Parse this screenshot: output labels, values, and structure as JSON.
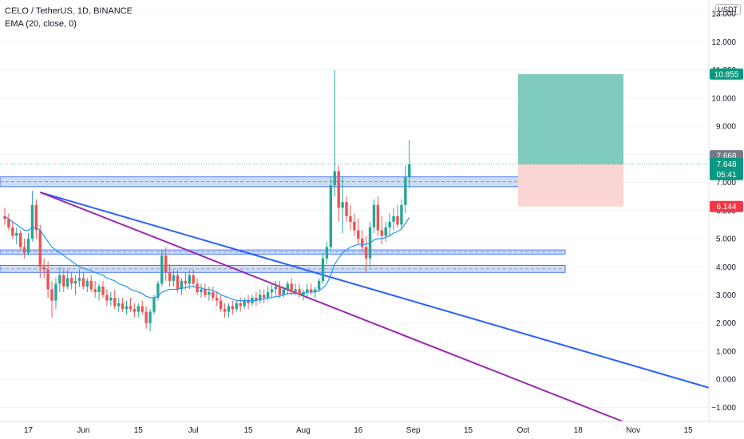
{
  "header": {
    "title": "CELO / TetherUS, 1D, BINANCE",
    "indicator": "EMA (20, close, 0)"
  },
  "currency_button": "USDT",
  "colors": {
    "up": "#26a69a",
    "down": "#ef5350",
    "ema": "#2196f3",
    "trend_blue": "#2962ff",
    "trend_purple": "#9c27b0",
    "zone_fill": "#c6d8f3",
    "zone_border": "#2962ff",
    "profit": "#7fcbbd",
    "loss": "#fbd4d4"
  },
  "price_tags": {
    "target": "10.855",
    "last_gray": "7.668",
    "last_green": "7.648",
    "countdown": "05:41",
    "stop": "6.144"
  },
  "chart_data": {
    "type": "candlestick",
    "ylim": [
      -1.5,
      14.0
    ],
    "y_ticks": [
      "13.000",
      "12.000",
      "11.000",
      "10.000",
      "9.000",
      "8.000",
      "7.000",
      "6.000",
      "5.000",
      "4.000",
      "3.000",
      "2.000",
      "1.000",
      "0.000",
      "−1.000"
    ],
    "y_tick_values": [
      13,
      12,
      11,
      10,
      9,
      8,
      7,
      6,
      5,
      4,
      3,
      2,
      1,
      0,
      -1
    ],
    "x_ticks": [
      "17",
      "Jun",
      "15",
      "Jul",
      "15",
      "Aug",
      "16",
      "Sep",
      "15",
      "Oct",
      "18",
      "Nov",
      "15"
    ],
    "x_tick_index": [
      6,
      20,
      34,
      48,
      62,
      76,
      90,
      104,
      118,
      132,
      146,
      160,
      174
    ],
    "x_start_index": 0,
    "ohlc": [
      [
        5.8,
        6.1,
        5.5,
        5.7
      ],
      [
        5.7,
        5.9,
        5.3,
        5.4
      ],
      [
        5.4,
        5.6,
        5.0,
        5.1
      ],
      [
        5.1,
        5.4,
        4.8,
        5.2
      ],
      [
        5.2,
        5.3,
        4.6,
        4.7
      ],
      [
        4.7,
        5.0,
        4.3,
        4.5
      ],
      [
        4.5,
        5.2,
        4.4,
        5.0
      ],
      [
        5.0,
        6.7,
        4.9,
        6.2
      ],
      [
        6.2,
        6.4,
        5.0,
        5.3
      ],
      [
        5.3,
        5.5,
        3.6,
        4.0
      ],
      [
        4.0,
        4.3,
        3.6,
        3.9
      ],
      [
        3.9,
        4.2,
        2.9,
        3.2
      ],
      [
        3.2,
        3.5,
        2.2,
        2.8
      ],
      [
        2.8,
        3.6,
        2.5,
        3.4
      ],
      [
        3.4,
        4.0,
        3.1,
        3.7
      ],
      [
        3.7,
        3.9,
        3.1,
        3.3
      ],
      [
        3.3,
        3.9,
        3.2,
        3.6
      ],
      [
        3.6,
        3.8,
        3.2,
        3.4
      ],
      [
        3.4,
        3.7,
        3.0,
        3.5
      ],
      [
        3.5,
        3.9,
        3.3,
        3.6
      ],
      [
        3.6,
        3.8,
        3.2,
        3.3
      ],
      [
        3.3,
        3.6,
        3.1,
        3.5
      ],
      [
        3.5,
        3.7,
        3.1,
        3.2
      ],
      [
        3.2,
        3.5,
        2.9,
        3.1
      ],
      [
        3.1,
        3.4,
        2.8,
        3.3
      ],
      [
        3.3,
        3.5,
        2.9,
        3.0
      ],
      [
        3.0,
        3.2,
        2.6,
        2.8
      ],
      [
        2.8,
        3.1,
        2.6,
        2.9
      ],
      [
        2.9,
        3.2,
        2.5,
        2.6
      ],
      [
        2.6,
        2.9,
        2.4,
        2.7
      ],
      [
        2.7,
        2.9,
        2.4,
        2.5
      ],
      [
        2.5,
        2.8,
        2.3,
        2.6
      ],
      [
        2.6,
        2.9,
        2.4,
        2.5
      ],
      [
        2.5,
        2.7,
        2.2,
        2.4
      ],
      [
        2.4,
        2.7,
        2.2,
        2.6
      ],
      [
        2.6,
        2.8,
        2.3,
        2.4
      ],
      [
        2.4,
        2.6,
        1.8,
        2.0
      ],
      [
        2.0,
        2.5,
        1.7,
        2.4
      ],
      [
        2.4,
        3.0,
        2.3,
        2.9
      ],
      [
        2.9,
        3.5,
        2.8,
        3.4
      ],
      [
        3.4,
        4.6,
        3.3,
        4.4
      ],
      [
        4.4,
        4.7,
        3.5,
        3.8
      ],
      [
        3.8,
        4.1,
        3.3,
        3.5
      ],
      [
        3.5,
        3.9,
        3.3,
        3.7
      ],
      [
        3.7,
        3.9,
        3.1,
        3.2
      ],
      [
        3.2,
        3.6,
        3.0,
        3.5
      ],
      [
        3.5,
        3.8,
        3.2,
        3.4
      ],
      [
        3.4,
        3.9,
        3.2,
        3.7
      ],
      [
        3.7,
        3.9,
        3.3,
        3.4
      ],
      [
        3.4,
        3.6,
        3.0,
        3.1
      ],
      [
        3.1,
        3.4,
        2.9,
        3.2
      ],
      [
        3.2,
        3.4,
        2.9,
        3.0
      ],
      [
        3.0,
        3.3,
        2.8,
        3.1
      ],
      [
        3.1,
        3.3,
        2.8,
        2.9
      ],
      [
        2.9,
        3.1,
        2.6,
        2.8
      ],
      [
        2.8,
        3.0,
        2.4,
        2.5
      ],
      [
        2.5,
        2.7,
        2.2,
        2.4
      ],
      [
        2.4,
        2.7,
        2.2,
        2.6
      ],
      [
        2.6,
        2.8,
        2.3,
        2.5
      ],
      [
        2.5,
        2.8,
        2.4,
        2.7
      ],
      [
        2.7,
        2.9,
        2.4,
        2.6
      ],
      [
        2.6,
        2.9,
        2.5,
        2.8
      ],
      [
        2.8,
        3.0,
        2.5,
        2.7
      ],
      [
        2.7,
        3.0,
        2.6,
        2.9
      ],
      [
        2.9,
        3.1,
        2.6,
        2.8
      ],
      [
        2.8,
        3.2,
        2.7,
        3.0
      ],
      [
        3.0,
        3.2,
        2.7,
        2.9
      ],
      [
        2.9,
        3.3,
        2.8,
        3.1
      ],
      [
        3.1,
        3.4,
        2.9,
        3.2
      ],
      [
        3.2,
        3.5,
        3.0,
        3.3
      ],
      [
        3.3,
        3.5,
        2.9,
        3.0
      ],
      [
        3.0,
        3.3,
        2.9,
        3.2
      ],
      [
        3.2,
        3.5,
        3.0,
        3.4
      ],
      [
        3.4,
        3.6,
        3.0,
        3.1
      ],
      [
        3.1,
        3.4,
        3.0,
        3.2
      ],
      [
        3.2,
        3.4,
        2.9,
        3.0
      ],
      [
        3.0,
        3.2,
        2.8,
        3.1
      ],
      [
        3.1,
        3.4,
        2.9,
        3.2
      ],
      [
        3.2,
        3.4,
        3.0,
        3.1
      ],
      [
        3.1,
        3.3,
        2.9,
        3.2
      ],
      [
        3.2,
        3.6,
        3.1,
        3.5
      ],
      [
        3.5,
        4.5,
        3.4,
        4.3
      ],
      [
        4.3,
        4.9,
        4.1,
        4.7
      ],
      [
        4.7,
        7.2,
        4.6,
        6.9
      ],
      [
        6.9,
        11.0,
        6.5,
        7.4
      ],
      [
        7.4,
        7.6,
        5.6,
        6.1
      ],
      [
        6.1,
        7.2,
        5.2,
        6.3
      ],
      [
        6.3,
        6.5,
        5.6,
        5.8
      ],
      [
        5.8,
        6.2,
        5.3,
        5.6
      ],
      [
        5.6,
        5.9,
        5.1,
        5.3
      ],
      [
        5.3,
        5.7,
        4.8,
        5.0
      ],
      [
        5.0,
        5.3,
        4.5,
        4.7
      ],
      [
        4.7,
        5.1,
        3.8,
        4.3
      ],
      [
        4.3,
        5.6,
        4.0,
        5.4
      ],
      [
        5.4,
        6.4,
        5.2,
        6.2
      ],
      [
        6.2,
        6.5,
        5.1,
        5.3
      ],
      [
        5.3,
        5.8,
        4.8,
        5.1
      ],
      [
        5.1,
        5.6,
        4.9,
        5.4
      ],
      [
        5.4,
        5.9,
        5.1,
        5.6
      ],
      [
        5.6,
        6.1,
        5.3,
        5.8
      ],
      [
        5.8,
        6.2,
        5.4,
        5.5
      ],
      [
        5.5,
        6.4,
        5.3,
        6.2
      ],
      [
        6.2,
        7.6,
        5.9,
        7.2
      ],
      [
        7.2,
        8.5,
        6.8,
        7.65
      ]
    ],
    "ema": [
      5.8,
      5.7,
      5.6,
      5.5,
      5.4,
      5.3,
      5.3,
      5.4,
      5.4,
      5.3,
      5.1,
      4.9,
      4.7,
      4.6,
      4.5,
      4.4,
      4.3,
      4.2,
      4.1,
      4.0,
      3.95,
      3.9,
      3.85,
      3.8,
      3.75,
      3.7,
      3.6,
      3.55,
      3.5,
      3.4,
      3.35,
      3.3,
      3.2,
      3.15,
      3.1,
      3.05,
      2.95,
      2.9,
      2.9,
      2.95,
      3.1,
      3.15,
      3.2,
      3.2,
      3.2,
      3.25,
      3.25,
      3.3,
      3.3,
      3.25,
      3.25,
      3.2,
      3.2,
      3.15,
      3.1,
      3.0,
      2.95,
      2.9,
      2.85,
      2.8,
      2.8,
      2.8,
      2.8,
      2.8,
      2.8,
      2.85,
      2.85,
      2.9,
      2.9,
      2.95,
      2.95,
      3.0,
      3.05,
      3.05,
      3.05,
      3.05,
      3.05,
      3.1,
      3.1,
      3.1,
      3.15,
      3.25,
      3.4,
      3.7,
      4.1,
      4.3,
      4.5,
      4.6,
      4.7,
      4.75,
      4.8,
      4.8,
      4.8,
      4.85,
      4.95,
      5.0,
      5.0,
      5.05,
      5.1,
      5.2,
      5.25,
      5.35,
      5.55,
      5.75
    ]
  }
}
